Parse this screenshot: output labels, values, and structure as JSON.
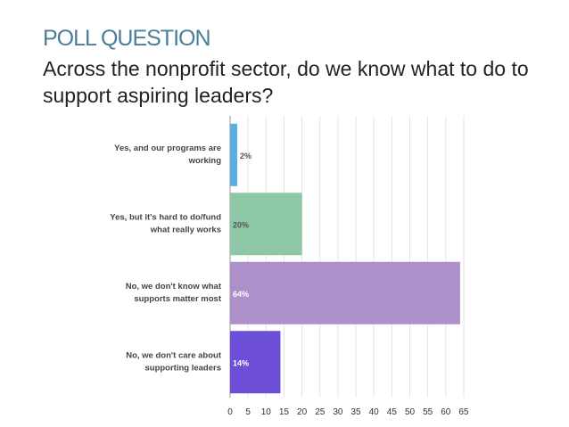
{
  "slide": {
    "heading": "POLL QUESTION",
    "question": "Across the nonprofit sector, do we know what to do to support aspiring leaders?"
  },
  "chart_data": {
    "type": "bar",
    "orientation": "horizontal",
    "title": "",
    "xlabel": "",
    "ylabel": "",
    "xlim": [
      0,
      65
    ],
    "xticks": [
      0,
      5,
      10,
      15,
      20,
      25,
      30,
      35,
      40,
      45,
      50,
      55,
      60,
      65
    ],
    "grid": true,
    "categories": [
      [
        "Yes, and our programs are",
        "working"
      ],
      [
        "Yes, but it's hard to do/fund",
        "what really works"
      ],
      [
        "No, we don't know what",
        "supports matter most"
      ],
      [
        "No, we don't care about",
        "supporting leaders"
      ]
    ],
    "values": [
      2,
      20,
      64,
      14
    ],
    "data_labels": [
      "2%",
      "20%",
      "64%",
      "14%"
    ],
    "colors": [
      "#5aaee0",
      "#8ec7a6",
      "#ad8fc9",
      "#6c4fd6"
    ],
    "label_colors": [
      "#555555",
      "#555555",
      "#ffffff",
      "#ffffff"
    ]
  }
}
